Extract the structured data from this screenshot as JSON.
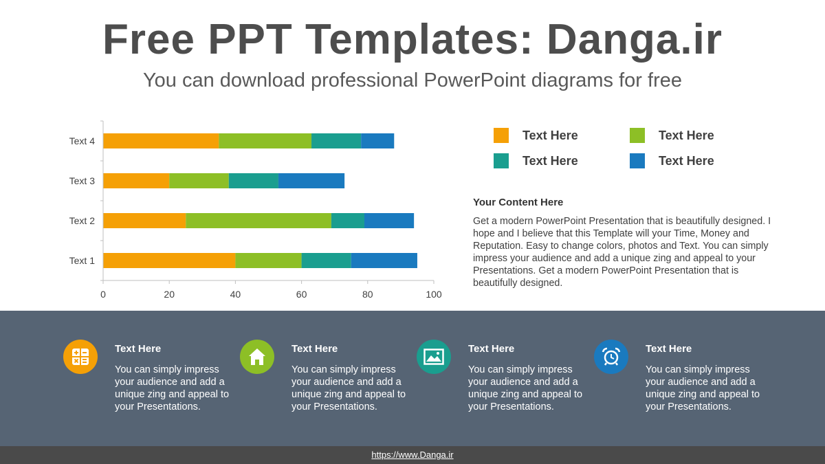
{
  "header": {
    "title": "Free PPT Templates: Danga.ir",
    "subtitle": "You can download professional PowerPoint diagrams for free"
  },
  "chart_data": {
    "type": "bar",
    "orientation": "horizontal",
    "stacked": true,
    "categories": [
      "Text 1",
      "Text 2",
      "Text 3",
      "Text 4"
    ],
    "series": [
      {
        "color": "#f5a006",
        "values": [
          40,
          25,
          20,
          35
        ]
      },
      {
        "color": "#8dbf26",
        "values": [
          20,
          44,
          18,
          28
        ]
      },
      {
        "color": "#1a9e8f",
        "values": [
          15,
          10,
          15,
          15
        ]
      },
      {
        "color": "#1a7abf",
        "values": [
          20,
          15,
          20,
          10
        ]
      }
    ],
    "xlim": [
      0,
      100
    ],
    "xticks": [
      0,
      20,
      40,
      60,
      80,
      100
    ],
    "grid": false,
    "legend": "right"
  },
  "legend": {
    "items": [
      {
        "label": "Text Here",
        "color": "#f5a006"
      },
      {
        "label": "Text Here",
        "color": "#8dbf26"
      },
      {
        "label": "Text Here",
        "color": "#1a9e8f"
      },
      {
        "label": "Text Here",
        "color": "#1a7abf"
      }
    ]
  },
  "content": {
    "title": "Your Content Here",
    "body": "Get a modern PowerPoint  Presentation that is beautifully designed. I hope and I believe that this Template will your Time, Money and Reputation. Easy to change colors, photos and Text. You can simply impress your audience and add a unique zing and appeal to your Presentations. Get a modern PowerPoint Presentation that is beautifully designed."
  },
  "features": [
    {
      "title": "Text  Here",
      "text": "You can simply impress your audience and add a unique zing and appeal to your Presentations.",
      "icon": "calculator-icon",
      "color": "#f5a006"
    },
    {
      "title": "Text  Here",
      "text": "You can simply impress your audience and add a unique zing and appeal to your Presentations.",
      "icon": "home-icon",
      "color": "#8dbf26"
    },
    {
      "title": "Text  Here",
      "text": "You can simply impress your audience and add a unique zing and appeal to your Presentations.",
      "icon": "image-icon",
      "color": "#1a9e8f"
    },
    {
      "title": "Text  Here",
      "text": "You can simply impress your audience and add a unique zing and appeal to your Presentations.",
      "icon": "alarm-clock-icon",
      "color": "#1a7abf"
    }
  ],
  "footer": {
    "link": "https://www.Danga.ir"
  }
}
